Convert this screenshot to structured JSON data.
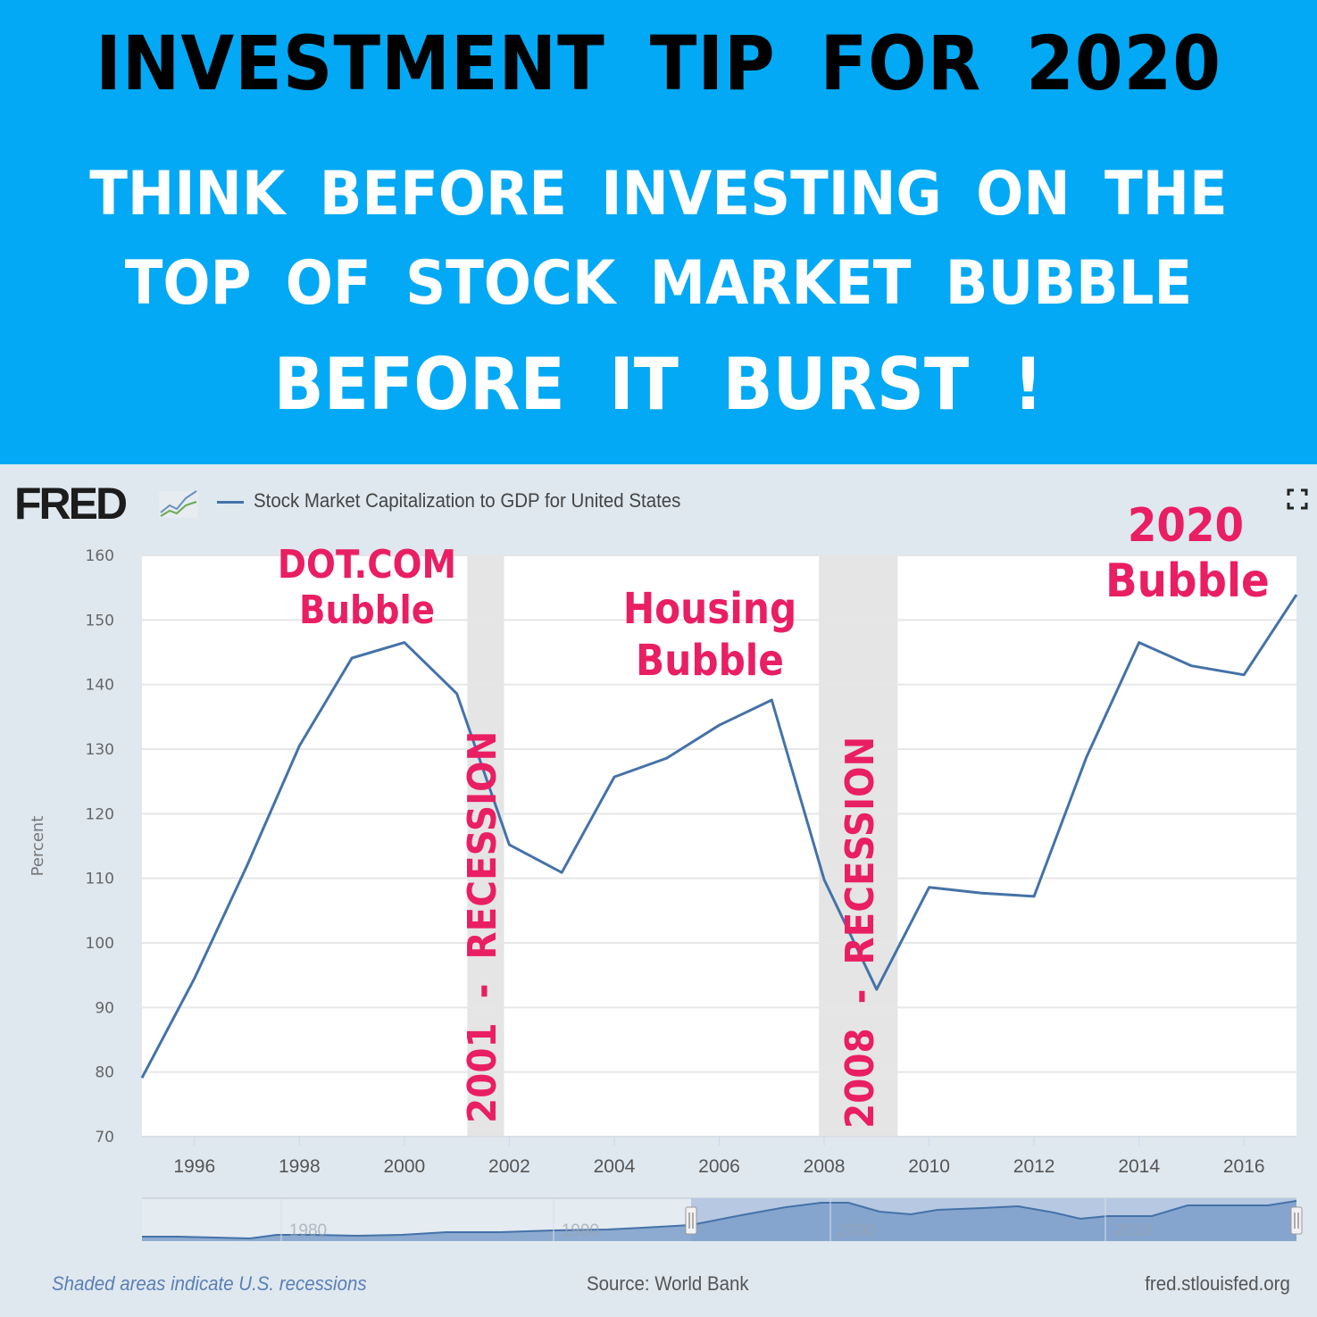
{
  "banner": {
    "line1": "INVESTMENT TIP FOR 2020",
    "line2": "THINK BEFORE INVESTING ON THE",
    "line3": "TOP OF STOCK MARKET BUBBLE",
    "line4": "BEFORE IT BURST !",
    "background_color": "#03a9f4"
  },
  "header": {
    "logo_text": "FRED",
    "logo_icon": "fred-chart-icon",
    "legend_label": "Stock Market Capitalization to GDP for United States",
    "fullscreen_icon": "fullscreen-icon"
  },
  "annotations": {
    "dotcom_line1": "DOT.COM",
    "dotcom_line2": "Bubble",
    "housing_line1": "Housing",
    "housing_line2": "Bubble",
    "bubble2020_line1": "2020",
    "bubble2020_line2": "Bubble",
    "recession1": "2001 - RECESSION",
    "recession2": "2008 - RECESSION",
    "color": "#e91e63"
  },
  "footer": {
    "note": "Shaded areas indicate U.S. recessions",
    "source": "Source: World Bank",
    "site": "fred.stlouisfed.org"
  },
  "navigator": {
    "labels": [
      "1980",
      "1990",
      "2000",
      "2010"
    ]
  },
  "chart_data": {
    "type": "line",
    "title": "Stock Market Capitalization to GDP for United States",
    "xlabel": "",
    "ylabel": "Percent",
    "x": [
      1995,
      1996,
      1997,
      1998,
      1999,
      2000,
      2001,
      2002,
      2003,
      2004,
      2005,
      2006,
      2007,
      2008,
      2009,
      2010,
      2011,
      2012,
      2013,
      2014,
      2015,
      2016,
      2017
    ],
    "series": [
      {
        "name": "Stock Market Capitalization to GDP for United States",
        "color": "#4472a8",
        "values": [
          79.1,
          94.5,
          111.9,
          130.5,
          144.1,
          146.5,
          138.6,
          115.2,
          110.9,
          125.7,
          128.6,
          133.7,
          137.6,
          109.8,
          92.8,
          108.6,
          107.7,
          107.2,
          128.8,
          146.5,
          142.9,
          141.5,
          153.9
        ]
      }
    ],
    "ylim": [
      70,
      160
    ],
    "yticks": [
      70,
      80,
      90,
      100,
      110,
      120,
      130,
      140,
      150,
      160
    ],
    "xticks": [
      "1996",
      "1998",
      "2000",
      "2002",
      "2004",
      "2006",
      "2008",
      "2010",
      "2012",
      "2014",
      "2016"
    ],
    "recessions": [
      {
        "start": 2001.2,
        "end": 2001.9
      },
      {
        "start": 2007.9,
        "end": 2009.4
      }
    ],
    "grid": true,
    "legend_position": "top-left",
    "source": "World Bank"
  }
}
